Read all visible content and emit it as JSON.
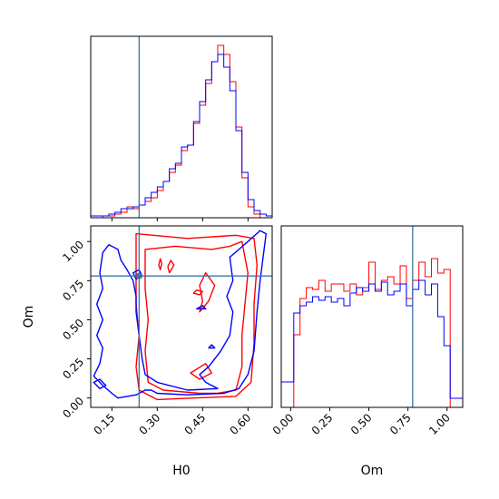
{
  "colors": {
    "series_red": "#ff0000",
    "series_blue": "#0000ff",
    "truth": "#3a75a8"
  },
  "chart_data": {
    "type": "corner",
    "parameters": [
      "H0",
      "Om"
    ],
    "truth": {
      "H0": 0.24,
      "Om": 0.78
    },
    "series": [
      {
        "color": "red"
      },
      {
        "color": "blue"
      }
    ],
    "axes": {
      "H0": {
        "label": "H0",
        "range": [
          0.08,
          0.68
        ],
        "ticks": [
          0.15,
          0.3,
          0.45,
          0.6
        ],
        "tick_labels": [
          "0.15",
          "0.30",
          "0.45",
          "0.60"
        ]
      },
      "Om": {
        "label": "Om",
        "range": [
          -0.06,
          1.1
        ],
        "ticks": [
          0.0,
          0.25,
          0.5,
          0.75,
          1.0
        ],
        "tick_labels": [
          "0.00",
          "0.25",
          "0.50",
          "0.75",
          "1.00"
        ]
      }
    },
    "hist_H0": {
      "bin_edges": [
        0.08,
        0.1,
        0.12,
        0.14,
        0.16,
        0.18,
        0.2,
        0.22,
        0.24,
        0.26,
        0.28,
        0.3,
        0.32,
        0.34,
        0.36,
        0.38,
        0.4,
        0.42,
        0.44,
        0.46,
        0.48,
        0.5,
        0.52,
        0.54,
        0.56,
        0.58,
        0.6,
        0.62,
        0.64,
        0.66,
        0.68
      ],
      "red": [
        0,
        0,
        1,
        1,
        2,
        3,
        6,
        5,
        7,
        9,
        11,
        15,
        20,
        25,
        29,
        37,
        40,
        52,
        62,
        74,
        86,
        95,
        90,
        75,
        50,
        22,
        6,
        2,
        0,
        0
      ],
      "blue": [
        1,
        1,
        1,
        2,
        3,
        5,
        5,
        6,
        7,
        11,
        14,
        17,
        20,
        27,
        30,
        39,
        40,
        53,
        64,
        76,
        86,
        90,
        83,
        70,
        48,
        25,
        10,
        4,
        2,
        1
      ],
      "ymax": 100
    },
    "hist_Om": {
      "bin_edges": [
        -0.06,
        -0.02,
        0.02,
        0.06,
        0.1,
        0.14,
        0.18,
        0.22,
        0.26,
        0.3,
        0.34,
        0.38,
        0.42,
        0.46,
        0.5,
        0.54,
        0.58,
        0.62,
        0.66,
        0.7,
        0.74,
        0.78,
        0.82,
        0.86,
        0.9,
        0.94,
        0.98,
        1.02,
        1.06,
        1.1
      ],
      "red": [
        0,
        0,
        40,
        60,
        66,
        65,
        70,
        64,
        68,
        68,
        64,
        68,
        62,
        66,
        80,
        65,
        70,
        72,
        68,
        78,
        60,
        70,
        80,
        72,
        82,
        74,
        76,
        0,
        0
      ],
      "blue": [
        14,
        14,
        52,
        56,
        58,
        61,
        59,
        61,
        58,
        60,
        56,
        63,
        66,
        64,
        68,
        64,
        69,
        62,
        64,
        68,
        56,
        65,
        70,
        62,
        68,
        50,
        34,
        5,
        5
      ],
      "ymax": 100
    },
    "contours": {
      "red": [
        [
          [
            0.23,
            1.05
          ],
          [
            0.4,
            1.02
          ],
          [
            0.56,
            1.04
          ],
          [
            0.62,
            1.02
          ],
          [
            0.63,
            0.85
          ],
          [
            0.62,
            0.6
          ],
          [
            0.62,
            0.35
          ],
          [
            0.61,
            0.1
          ],
          [
            0.56,
            0.01
          ],
          [
            0.42,
            0.0
          ],
          [
            0.3,
            -0.01
          ],
          [
            0.27,
            0.02
          ],
          [
            0.24,
            0.05
          ],
          [
            0.23,
            0.2
          ],
          [
            0.24,
            0.4
          ],
          [
            0.23,
            0.6
          ],
          [
            0.23,
            0.85
          ],
          [
            0.23,
            1.05
          ]
        ],
        [
          [
            0.26,
            0.95
          ],
          [
            0.36,
            0.97
          ],
          [
            0.48,
            0.95
          ],
          [
            0.54,
            0.97
          ],
          [
            0.58,
            1.0
          ],
          [
            0.6,
            0.8
          ],
          [
            0.59,
            0.6
          ],
          [
            0.58,
            0.4
          ],
          [
            0.58,
            0.2
          ],
          [
            0.56,
            0.05
          ],
          [
            0.5,
            0.03
          ],
          [
            0.44,
            0.03
          ],
          [
            0.32,
            0.05
          ],
          [
            0.29,
            0.08
          ],
          [
            0.27,
            0.1
          ],
          [
            0.26,
            0.3
          ],
          [
            0.27,
            0.5
          ],
          [
            0.26,
            0.7
          ],
          [
            0.26,
            0.95
          ]
        ],
        [
          [
            0.44,
            0.55
          ],
          [
            0.47,
            0.62
          ],
          [
            0.49,
            0.72
          ],
          [
            0.46,
            0.8
          ],
          [
            0.44,
            0.72
          ],
          [
            0.45,
            0.62
          ],
          [
            0.44,
            0.55
          ]
        ],
        [
          [
            0.34,
            0.8
          ],
          [
            0.355,
            0.85
          ],
          [
            0.345,
            0.88
          ],
          [
            0.335,
            0.84
          ],
          [
            0.34,
            0.8
          ]
        ],
        [
          [
            0.41,
            0.16
          ],
          [
            0.44,
            0.12
          ],
          [
            0.48,
            0.16
          ],
          [
            0.46,
            0.22
          ],
          [
            0.41,
            0.16
          ]
        ],
        [
          [
            0.42,
            0.67
          ],
          [
            0.44,
            0.66
          ],
          [
            0.45,
            0.68
          ],
          [
            0.43,
            0.69
          ],
          [
            0.42,
            0.67
          ]
        ],
        [
          [
            0.31,
            0.82
          ],
          [
            0.315,
            0.86
          ],
          [
            0.31,
            0.89
          ],
          [
            0.305,
            0.85
          ],
          [
            0.31,
            0.82
          ]
        ]
      ],
      "blue": [
        [
          [
            0.17,
            0.0
          ],
          [
            0.23,
            0.02
          ],
          [
            0.26,
            0.05
          ],
          [
            0.28,
            0.05
          ],
          [
            0.3,
            0.03
          ],
          [
            0.4,
            0.02
          ],
          [
            0.52,
            0.03
          ],
          [
            0.57,
            0.06
          ],
          [
            0.6,
            0.15
          ],
          [
            0.62,
            0.3
          ],
          [
            0.63,
            0.55
          ],
          [
            0.64,
            0.75
          ],
          [
            0.66,
            1.05
          ],
          [
            0.64,
            1.07
          ],
          [
            0.6,
            1.0
          ],
          [
            0.57,
            0.95
          ],
          [
            0.54,
            0.9
          ],
          [
            0.55,
            0.75
          ],
          [
            0.53,
            0.65
          ],
          [
            0.55,
            0.55
          ],
          [
            0.54,
            0.4
          ],
          [
            0.51,
            0.3
          ],
          [
            0.47,
            0.2
          ],
          [
            0.44,
            0.15
          ],
          [
            0.46,
            0.1
          ],
          [
            0.5,
            0.06
          ],
          [
            0.4,
            0.05
          ],
          [
            0.3,
            0.1
          ],
          [
            0.26,
            0.15
          ],
          [
            0.25,
            0.25
          ],
          [
            0.24,
            0.4
          ],
          [
            0.23,
            0.55
          ],
          [
            0.23,
            0.65
          ],
          [
            0.22,
            0.75
          ],
          [
            0.2,
            0.82
          ],
          [
            0.18,
            0.88
          ],
          [
            0.17,
            0.95
          ],
          [
            0.14,
            0.98
          ],
          [
            0.12,
            0.93
          ],
          [
            0.11,
            0.8
          ],
          [
            0.12,
            0.7
          ],
          [
            0.1,
            0.6
          ],
          [
            0.12,
            0.5
          ],
          [
            0.1,
            0.4
          ],
          [
            0.12,
            0.32
          ],
          [
            0.11,
            0.22
          ],
          [
            0.09,
            0.14
          ],
          [
            0.12,
            0.08
          ],
          [
            0.15,
            0.03
          ],
          [
            0.17,
            0.0
          ]
        ],
        [
          [
            0.22,
            0.8
          ],
          [
            0.23,
            0.76
          ],
          [
            0.25,
            0.78
          ],
          [
            0.24,
            0.82
          ],
          [
            0.22,
            0.8
          ]
        ],
        [
          [
            0.09,
            0.1
          ],
          [
            0.11,
            0.06
          ],
          [
            0.13,
            0.08
          ],
          [
            0.11,
            0.12
          ],
          [
            0.09,
            0.1
          ]
        ],
        [
          [
            0.43,
            0.57
          ],
          [
            0.46,
            0.57
          ],
          [
            0.45,
            0.59
          ],
          [
            0.43,
            0.57
          ]
        ],
        [
          [
            0.47,
            0.32
          ],
          [
            0.49,
            0.32
          ],
          [
            0.48,
            0.34
          ],
          [
            0.47,
            0.32
          ]
        ]
      ]
    }
  }
}
